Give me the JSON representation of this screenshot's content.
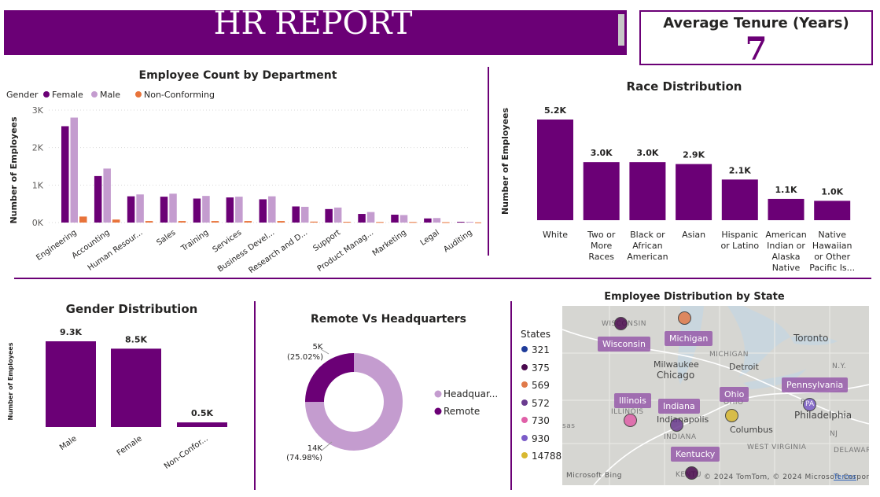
{
  "header": {
    "title": "HR REPORT"
  },
  "kpi": {
    "label": "Average Tenure (Years)",
    "value": "7"
  },
  "colors": {
    "accent": "#6b0076",
    "female": "#6b0076",
    "male": "#c49ccf",
    "nonconforming": "#e8733a",
    "banner": "#6b0076"
  },
  "chart_data": [
    {
      "id": "dept",
      "type": "bar",
      "title": "Employee Count by Department",
      "xlabel": "",
      "ylabel": "Number of Employees",
      "legend_title": "Gender",
      "ylim": [
        0,
        3000
      ],
      "yticks": [
        0,
        1000,
        2000,
        3000
      ],
      "ytick_labels": [
        "0K",
        "1K",
        "2K",
        "3K"
      ],
      "categories": [
        "Engineering",
        "Accounting",
        "Human Resour...",
        "Sales",
        "Training",
        "Services",
        "Business Devel...",
        "Research and D...",
        "Support",
        "Product Manag...",
        "Marketing",
        "Legal",
        "Auditing"
      ],
      "series": [
        {
          "name": "Female",
          "values": [
            2570,
            1240,
            700,
            690,
            640,
            670,
            620,
            430,
            360,
            230,
            210,
            110,
            20
          ]
        },
        {
          "name": "Male",
          "values": [
            2800,
            1440,
            750,
            770,
            710,
            690,
            700,
            420,
            400,
            280,
            200,
            120,
            20
          ]
        },
        {
          "name": "Non-Conforming",
          "values": [
            160,
            80,
            40,
            40,
            40,
            40,
            40,
            25,
            20,
            15,
            15,
            10,
            5
          ]
        }
      ]
    },
    {
      "id": "race",
      "type": "bar",
      "title": "Race Distribution",
      "xlabel": "",
      "ylabel": "Number of Employees",
      "ylim": [
        0,
        5200
      ],
      "categories": [
        [
          "White"
        ],
        [
          "Two or",
          "More",
          "Races"
        ],
        [
          "Black or",
          "African",
          "American"
        ],
        [
          "Asian"
        ],
        [
          "Hispanic",
          "or Latino"
        ],
        [
          "American",
          "Indian or",
          "Alaska",
          "Native"
        ],
        [
          "Native",
          "Hawaiian",
          "or Other",
          "Pacific Is..."
        ]
      ],
      "values": [
        5200,
        3000,
        3000,
        2900,
        2100,
        1100,
        1000
      ],
      "data_labels": [
        "5.2K",
        "3.0K",
        "3.0K",
        "2.9K",
        "2.1K",
        "1.1K",
        "1.0K"
      ]
    },
    {
      "id": "gender",
      "type": "bar",
      "title": "Gender Distribution",
      "xlabel": "",
      "ylabel": "Number of Employees",
      "ylim": [
        0,
        9300
      ],
      "categories": [
        "Male",
        "Female",
        "Non-Confor..."
      ],
      "values": [
        9300,
        8500,
        500
      ],
      "data_labels": [
        "9.3K",
        "8.5K",
        "0.5K"
      ]
    },
    {
      "id": "remote",
      "type": "pie",
      "title": "Remote Vs Headquarters",
      "categories": [
        "Headquar...",
        "Remote"
      ],
      "values": [
        74.98,
        25.02
      ],
      "value_labels": [
        "14K",
        "5K"
      ],
      "percent_labels": [
        "(74.98%)",
        "(25.02%)"
      ],
      "colors": [
        "#c49ccf",
        "#6b0076"
      ]
    }
  ],
  "map": {
    "title": "Employee Distribution by State",
    "legend_title": "States",
    "legend": [
      {
        "label": "321",
        "color": "#1f3c9a"
      },
      {
        "label": "375",
        "color": "#4a0a4e"
      },
      {
        "label": "569",
        "color": "#e07a4a"
      },
      {
        "label": "572",
        "color": "#6a3b8f"
      },
      {
        "label": "730",
        "color": "#e060a8"
      },
      {
        "label": "930",
        "color": "#7b5cc8"
      },
      {
        "label": "14788",
        "color": "#d8b830"
      }
    ],
    "state_labels": [
      "Wisconsin",
      "Michigan",
      "Illinois",
      "Indiana",
      "Ohio",
      "Pennsylvania",
      "Kentucky"
    ],
    "towns": [
      "Toronto",
      "Milwaukee",
      "Chicago",
      "Detroit",
      "Indianapolis",
      "Columbus",
      "Philadelphia"
    ],
    "regions": [
      "WISCONSIN",
      "MICHIGAN",
      "ILLINOIS",
      "INDIANA",
      "OHIO",
      "WEST VIRGINIA",
      "N.Y.",
      "NJ",
      "MD",
      "DELAWAR",
      "PA",
      "KENTU",
      "sas"
    ],
    "dot_texts": [
      "PA"
    ],
    "attribution": "© 2024 TomTom, © 2024 Microsoft Corporation",
    "terms": "Terms",
    "provider": "Microsoft Bing"
  }
}
